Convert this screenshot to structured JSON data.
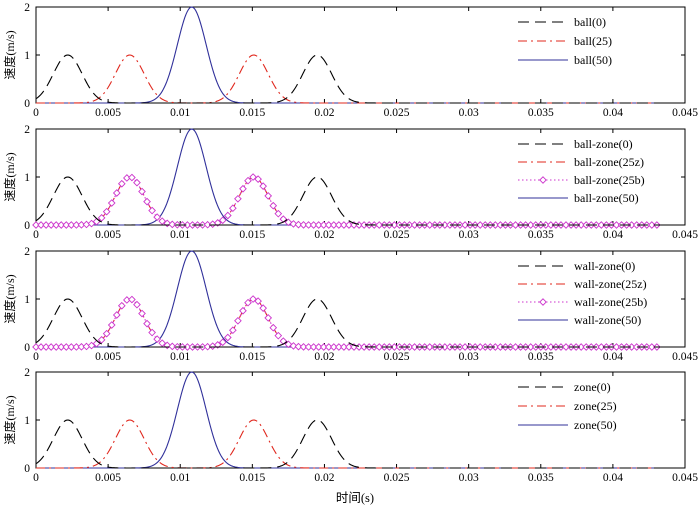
{
  "chart_data": {
    "type": "line",
    "xlabel": "时间(s)",
    "xlim": [
      0,
      0.045
    ],
    "xticks": [
      "0",
      "0.005",
      "0.01",
      "0.015",
      "0.02",
      "0.025",
      "0.03",
      "0.035",
      "0.04",
      "0.045"
    ],
    "line_styles": {
      "black-dash": "#000000",
      "red-dashdot": "#e0281e",
      "magenta-dotted-diamond": "#cc33cc",
      "blue-solid": "#30309a"
    },
    "panels": [
      {
        "ylabel": "速度(m/s)",
        "ylim": [
          0,
          2
        ],
        "yticks": [
          "0",
          "1",
          "2"
        ],
        "legend": "top-right",
        "series": [
          {
            "name": "ball(0)",
            "style": "black-dash",
            "pulses": [
              {
                "center": 0.0022,
                "amp": 1.0
              },
              {
                "center": 0.0195,
                "amp": 1.0
              }
            ]
          },
          {
            "name": "ball(25)",
            "style": "red-dashdot",
            "pulses": [
              {
                "center": 0.0065,
                "amp": 1.0
              },
              {
                "center": 0.0151,
                "amp": 1.0
              }
            ]
          },
          {
            "name": "ball(50)",
            "style": "blue-solid",
            "pulses": [
              {
                "center": 0.0108,
                "amp": 2.0
              }
            ]
          }
        ]
      },
      {
        "ylabel": "速度(m/s)",
        "ylim": [
          0,
          2
        ],
        "yticks": [
          "0",
          "1",
          "2"
        ],
        "legend": "top-right",
        "series": [
          {
            "name": "ball-zone(0)",
            "style": "black-dash",
            "pulses": [
              {
                "center": 0.0022,
                "amp": 1.0
              },
              {
                "center": 0.0195,
                "amp": 1.0
              }
            ]
          },
          {
            "name": "ball-zone(25z)",
            "style": "red-dashdot",
            "pulses": [
              {
                "center": 0.0065,
                "amp": 1.0
              },
              {
                "center": 0.0151,
                "amp": 1.0
              }
            ]
          },
          {
            "name": "ball-zone(25b)",
            "style": "magenta-dotted-diamond",
            "pulses": [
              {
                "center": 0.0065,
                "amp": 1.0
              },
              {
                "center": 0.0151,
                "amp": 1.0
              }
            ]
          },
          {
            "name": "ball-zone(50)",
            "style": "blue-solid",
            "pulses": [
              {
                "center": 0.0108,
                "amp": 2.0
              }
            ]
          }
        ]
      },
      {
        "ylabel": "速度(m/s)",
        "ylim": [
          0,
          2
        ],
        "yticks": [
          "0",
          "1",
          "2"
        ],
        "legend": "top-right",
        "series": [
          {
            "name": "wall-zone(0)",
            "style": "black-dash",
            "pulses": [
              {
                "center": 0.0022,
                "amp": 1.0
              },
              {
                "center": 0.0195,
                "amp": 1.0
              }
            ]
          },
          {
            "name": "wall-zone(25z)",
            "style": "red-dashdot",
            "pulses": [
              {
                "center": 0.0065,
                "amp": 1.0
              },
              {
                "center": 0.0151,
                "amp": 1.0
              }
            ]
          },
          {
            "name": "wall-zone(25b)",
            "style": "magenta-dotted-diamond",
            "pulses": [
              {
                "center": 0.0065,
                "amp": 1.0
              },
              {
                "center": 0.0151,
                "amp": 1.0
              }
            ]
          },
          {
            "name": "wall-zone(50)",
            "style": "blue-solid",
            "pulses": [
              {
                "center": 0.0108,
                "amp": 2.0
              }
            ]
          }
        ]
      },
      {
        "ylabel": "速度(m/s)",
        "ylim": [
          0,
          2
        ],
        "yticks": [
          "0",
          "1",
          "2"
        ],
        "legend": "top-right",
        "series": [
          {
            "name": "zone(0)",
            "style": "black-dash",
            "pulses": [
              {
                "center": 0.0022,
                "amp": 1.0
              },
              {
                "center": 0.0195,
                "amp": 1.0
              }
            ]
          },
          {
            "name": "zone(25)",
            "style": "red-dashdot",
            "pulses": [
              {
                "center": 0.0065,
                "amp": 1.0
              },
              {
                "center": 0.0151,
                "amp": 1.0
              }
            ]
          },
          {
            "name": "zone(50)",
            "style": "blue-solid",
            "pulses": [
              {
                "center": 0.0108,
                "amp": 2.0
              }
            ]
          }
        ]
      }
    ]
  }
}
